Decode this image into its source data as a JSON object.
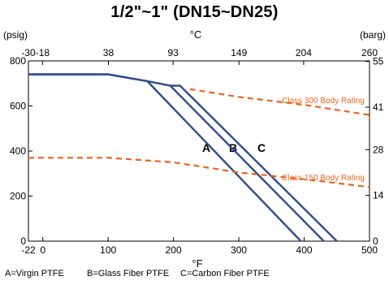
{
  "chart_data": {
    "type": "line",
    "title": "1/2\"~1\"  (DN15~DN25)",
    "left_axis": {
      "label": "(psig)",
      "ticks": [
        0,
        200,
        400,
        600,
        800
      ],
      "range": [
        0,
        800
      ]
    },
    "right_axis": {
      "label": "(barg)",
      "ticks": [
        0,
        14,
        28,
        41,
        55
      ],
      "range": [
        0,
        55.16
      ]
    },
    "bottom_axis": {
      "label": "°F",
      "ticks": [
        -22,
        0,
        100,
        200,
        300,
        400,
        500
      ],
      "range": [
        -22,
        500
      ]
    },
    "top_axis": {
      "label": "°C",
      "ticks": [
        -30,
        -18,
        38,
        93,
        149,
        204,
        260
      ],
      "range": [
        -30,
        260
      ]
    },
    "series": [
      {
        "name": "A",
        "color": "#2e4d8a",
        "style": "solid",
        "x": [
          -22,
          100,
          160,
          395
        ],
        "y": [
          740,
          740,
          710,
          0
        ]
      },
      {
        "name": "B",
        "color": "#2e4d8a",
        "style": "solid",
        "x": [
          -22,
          100,
          160,
          195,
          430
        ],
        "y": [
          740,
          740,
          710,
          690,
          0
        ]
      },
      {
        "name": "C",
        "color": "#2e4d8a",
        "style": "solid",
        "x": [
          -22,
          100,
          160,
          195,
          210,
          450
        ],
        "y": [
          740,
          740,
          710,
          690,
          690,
          0
        ]
      },
      {
        "name": "Class 300 Body Rating",
        "color": "#e8641e",
        "style": "dashed",
        "x": [
          225,
          300,
          400,
          500
        ],
        "y": [
          675,
          640,
          605,
          560
        ]
      },
      {
        "name": "Class 150 Body Rating",
        "color": "#e8641e",
        "style": "dashed",
        "x": [
          -22,
          100,
          200,
          300,
          400,
          500
        ],
        "y": [
          370,
          370,
          350,
          305,
          275,
          240
        ]
      }
    ],
    "curve_labels": [
      "A",
      "B",
      "C"
    ],
    "annotations": [
      "Class 300 Body Rating",
      "Class 150 Body Rating"
    ],
    "legend": [
      "A=Virgin PTFE",
      "B=Glass Fiber PTFE",
      "C=Carbon Fiber PTFE"
    ],
    "legend_position": "bottom",
    "grid": false
  }
}
